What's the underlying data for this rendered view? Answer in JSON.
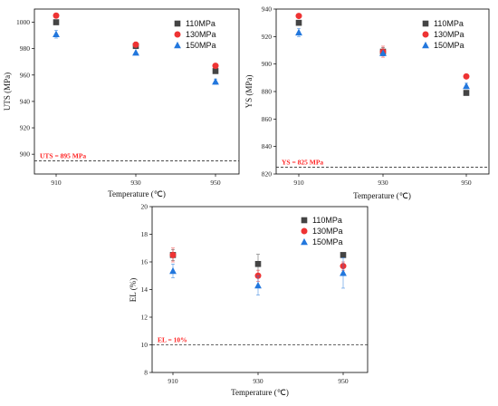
{
  "colors": {
    "series": [
      "#444444",
      "#ee3333",
      "#2277dd"
    ],
    "reference": "#ff2222",
    "axis": "#000000"
  },
  "chart_data": [
    {
      "type": "scatter",
      "xlabel": "Temperature (℃)",
      "ylabel": "UTS (MPa)",
      "categories": [
        "910",
        "930",
        "950"
      ],
      "ylim": [
        885,
        1010
      ],
      "yticks": [
        900,
        920,
        940,
        960,
        980,
        1000
      ],
      "ytick_labels": [
        "900",
        "920",
        "940",
        "960",
        "980",
        "1000"
      ],
      "legend_position": "top-right",
      "reference_line": {
        "value": 895,
        "label": "UTS = 895 MPa"
      },
      "series": [
        {
          "name": "110MPa",
          "marker": "square",
          "values": [
            1000,
            982,
            963
          ],
          "errors": [
            0,
            1,
            0
          ]
        },
        {
          "name": "130MPa",
          "marker": "circle",
          "values": [
            1005,
            983,
            967
          ],
          "errors": [
            0,
            2,
            0
          ]
        },
        {
          "name": "150MPa",
          "marker": "triangle",
          "values": [
            991,
            977,
            955
          ],
          "errors": [
            3,
            0,
            2
          ]
        }
      ]
    },
    {
      "type": "scatter",
      "xlabel": "Temperature (℃)",
      "ylabel": "YS (MPa)",
      "categories": [
        "910",
        "930",
        "950"
      ],
      "ylim": [
        820,
        940
      ],
      "yticks": [
        820,
        840,
        860,
        880,
        900,
        920,
        940
      ],
      "ytick_labels": [
        "820",
        "840",
        "860",
        "880",
        "900",
        "920",
        "940"
      ],
      "legend_position": "top-right",
      "reference_line": {
        "value": 825,
        "label": "YS = 825 MPa"
      },
      "series": [
        {
          "name": "110MPa",
          "marker": "square",
          "values": [
            930,
            909,
            879
          ],
          "errors": [
            0,
            3,
            0
          ]
        },
        {
          "name": "130MPa",
          "marker": "circle",
          "values": [
            935,
            909,
            891
          ],
          "errors": [
            0,
            4,
            0
          ]
        },
        {
          "name": "150MPa",
          "marker": "triangle",
          "values": [
            923,
            908,
            884
          ],
          "errors": [
            3,
            0,
            2
          ]
        }
      ]
    },
    {
      "type": "scatter",
      "xlabel": "Temperature (℃)",
      "ylabel": "EL (%)",
      "categories": [
        "910",
        "930",
        "950"
      ],
      "ylim": [
        8,
        20
      ],
      "yticks": [
        8,
        10,
        12,
        14,
        16,
        18,
        20
      ],
      "ytick_labels": [
        "8",
        "10",
        "12",
        "14",
        "16",
        "18",
        "20"
      ],
      "legend_position": "top-right",
      "reference_line": {
        "value": 10,
        "label": "EL = 10%"
      },
      "series": [
        {
          "name": "110MPa",
          "marker": "square",
          "values": [
            16.5,
            15.85,
            16.5
          ],
          "errors": [
            0.4,
            0.7,
            0
          ]
        },
        {
          "name": "130MPa",
          "marker": "circle",
          "values": [
            16.5,
            15.0,
            15.7
          ],
          "errors": [
            0.5,
            0.4,
            0.3
          ]
        },
        {
          "name": "150MPa",
          "marker": "triangle",
          "values": [
            15.35,
            14.3,
            15.2
          ],
          "errors": [
            0.5,
            0.7,
            1.1
          ]
        }
      ]
    }
  ]
}
